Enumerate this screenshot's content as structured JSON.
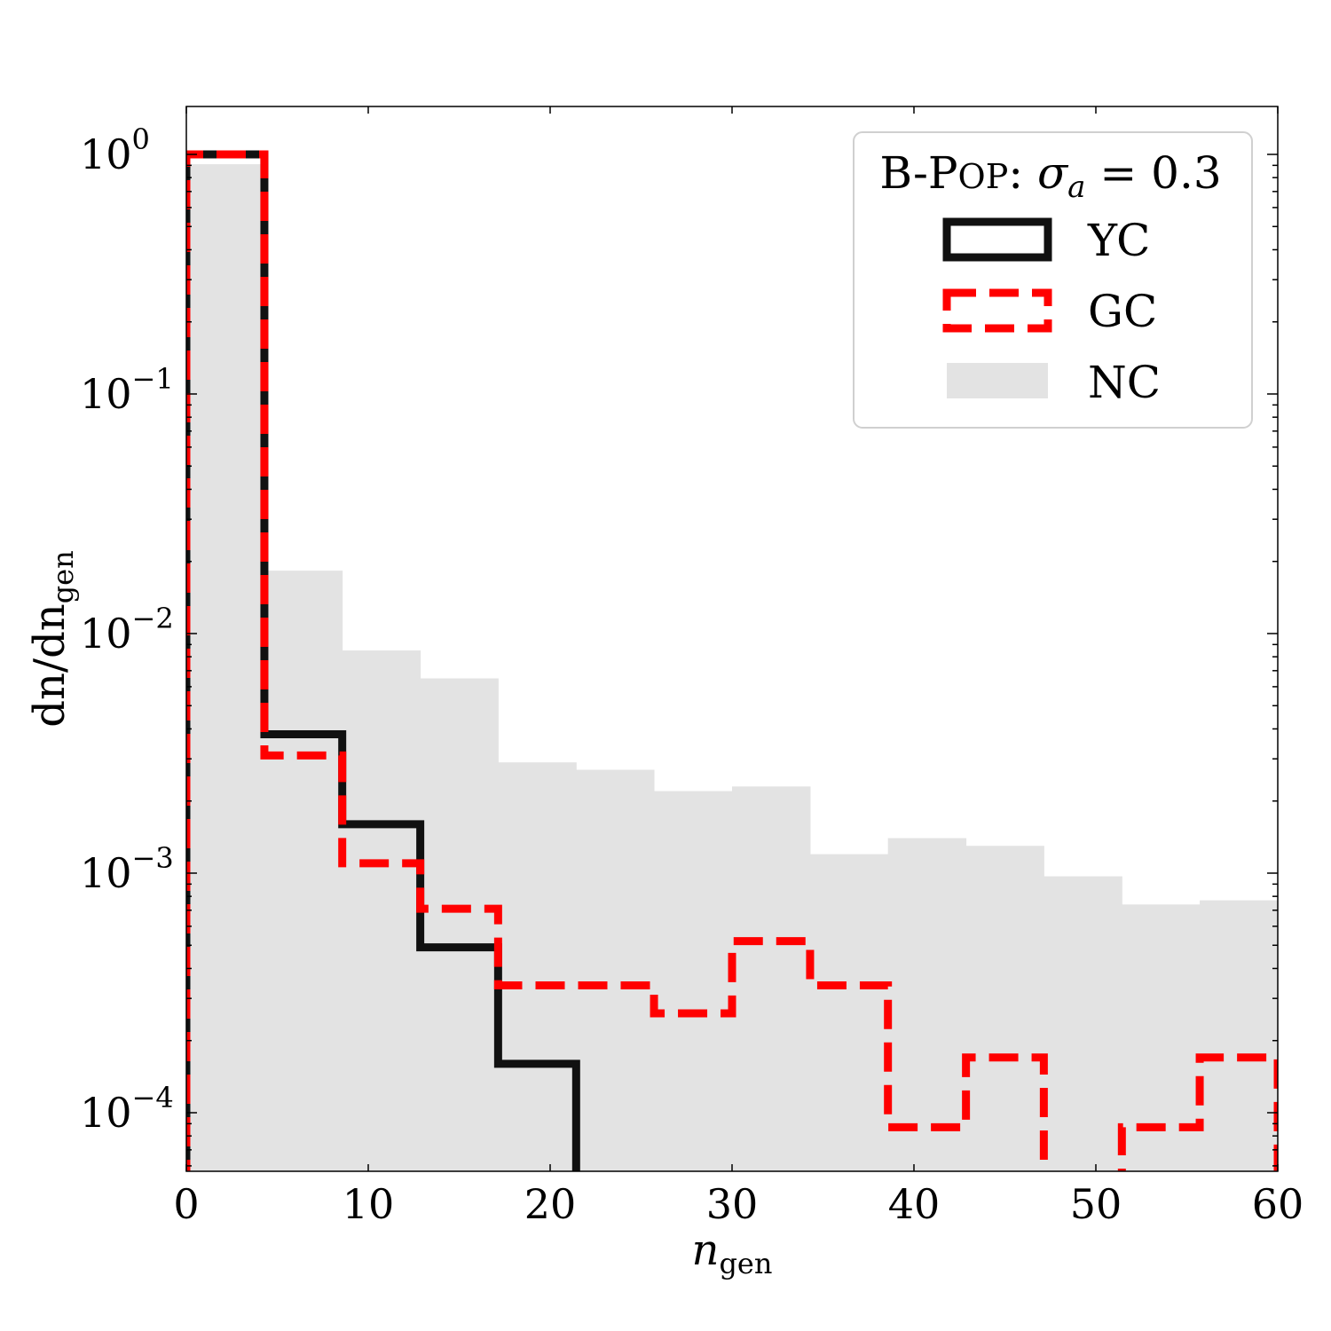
{
  "chart_data": {
    "type": "bar",
    "subtype": "step-histogram",
    "title": "",
    "xlabel": "n_gen",
    "ylabel": "dn/dn_gen",
    "xscale": "linear",
    "yscale": "log",
    "xlim": [
      0,
      60
    ],
    "ylim": [
      5.6e-05,
      1.6
    ],
    "xticks": [
      0,
      10,
      20,
      30,
      40,
      50,
      60
    ],
    "xtick_labels": [
      "0",
      "10",
      "20",
      "30",
      "40",
      "50",
      "60"
    ],
    "yticks": [
      1,
      0.1,
      0.01,
      0.001,
      0.0001
    ],
    "ytick_labels": [
      {
        "base": "10",
        "exp": "0"
      },
      {
        "base": "10",
        "exp": "−1"
      },
      {
        "base": "10",
        "exp": "−2"
      },
      {
        "base": "10",
        "exp": "−3"
      },
      {
        "base": "10",
        "exp": "−4"
      }
    ],
    "grid": false,
    "legend_position": "upper right",
    "legend_title": {
      "prefix": "B-P",
      "smallcaps": "OP",
      "suffix": ": ",
      "symbol": "σ",
      "subscript": "a",
      "eq": " = 0.3"
    },
    "bin_edges": [
      0,
      4.29,
      8.57,
      12.86,
      17.14,
      21.43,
      25.71,
      30.0,
      34.29,
      38.57,
      42.86,
      47.14,
      51.43,
      55.71,
      60.0
    ],
    "series": [
      {
        "name": "YC",
        "style": "step",
        "color": "#111111",
        "linestyle": "solid",
        "values": [
          1.0,
          0.0038,
          0.0016,
          0.00049,
          0.00016,
          0,
          0,
          0,
          0,
          0,
          0,
          0,
          0,
          0
        ]
      },
      {
        "name": "GC",
        "style": "step",
        "color": "#ff0000",
        "linestyle": "dashed",
        "values": [
          1.0,
          0.0031,
          0.0011,
          0.00071,
          0.00034,
          0.00034,
          0.00026,
          0.00052,
          0.00034,
          8.7e-05,
          0.00017,
          0,
          8.7e-05,
          0.00017
        ]
      },
      {
        "name": "NC",
        "style": "filled",
        "color": "#e3e3e3",
        "linestyle": "none",
        "values": [
          0.91,
          0.0183,
          0.0085,
          0.0065,
          0.0029,
          0.0027,
          0.0022,
          0.0023,
          0.0012,
          0.0014,
          0.0013,
          0.00097,
          0.00074,
          0.00077
        ]
      }
    ]
  },
  "axes": {
    "xlabel_main": "n",
    "xlabel_sub": "gen",
    "ylabel_text": "dn/dn",
    "ylabel_sub": "gen"
  },
  "legend": {
    "entries": [
      {
        "label": "YC"
      },
      {
        "label": "GC"
      },
      {
        "label": "NC"
      }
    ]
  }
}
